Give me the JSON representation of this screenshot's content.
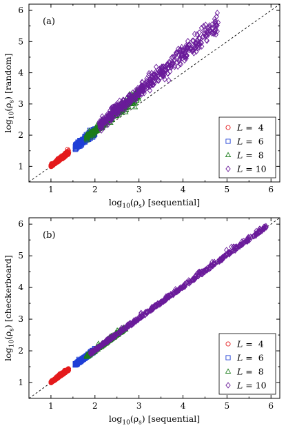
{
  "colors": {
    "L4": "#e41a1c",
    "L6": "#1f3fd6",
    "L8": "#1b7d1b",
    "L10": "#6a1b9a"
  },
  "chart_data": [
    {
      "type": "scatter",
      "panel_label": "(a)",
      "xlabel_math": "log",
      "xlabel_sub": "10",
      "xlabel_rho": "(ρ",
      "xlabel_rho_sub": "s",
      "xlabel_rest": ") [sequential]",
      "ylabel_math": "log",
      "ylabel_sub": "10",
      "ylabel_rho": "(ρ",
      "ylabel_rho_sub": "s",
      "ylabel_rest": ") [random]",
      "xlim": [
        0.5,
        6.2
      ],
      "ylim": [
        0.5,
        6.2
      ],
      "xticks": [
        "1",
        "2",
        "3",
        "4",
        "5",
        "6"
      ],
      "yticks": [
        "1",
        "2",
        "3",
        "4",
        "5",
        "6"
      ],
      "reference_line": "y = x",
      "legend_placement": "bottom-right",
      "series": [
        {
          "name": "L =  4",
          "marker": "circle",
          "color_key": "L4",
          "x_range": [
            1.0,
            1.4
          ],
          "slope": 1.08,
          "spread": 0.04
        },
        {
          "name": "L =  6",
          "marker": "square",
          "color_key": "L6",
          "x_range": [
            1.55,
            2.0
          ],
          "slope": 1.12,
          "spread": 0.06
        },
        {
          "name": "L =  8",
          "marker": "triangle",
          "color_key": "L8",
          "x_range": [
            1.8,
            3.0
          ],
          "slope": 1.16,
          "spread": 0.09
        },
        {
          "name": "L = 10",
          "marker": "diamond",
          "color_key": "L10",
          "x_range": [
            2.1,
            4.8
          ],
          "slope": 1.2,
          "spread": 0.14
        }
      ]
    },
    {
      "type": "scatter",
      "panel_label": "(b)",
      "xlabel_math": "log",
      "xlabel_sub": "10",
      "xlabel_rho": "(ρ",
      "xlabel_rho_sub": "s",
      "xlabel_rest": ") [sequential]",
      "ylabel_math": "log",
      "ylabel_sub": "10",
      "ylabel_rho": "(ρ",
      "ylabel_rho_sub": "s",
      "ylabel_rest": ") [checkerboard]",
      "xlim": [
        0.5,
        6.2
      ],
      "ylim": [
        0.5,
        6.2
      ],
      "xticks": [
        "1",
        "2",
        "3",
        "4",
        "5",
        "6"
      ],
      "yticks": [
        "1",
        "2",
        "3",
        "4",
        "5",
        "6"
      ],
      "reference_line": "y = x",
      "legend_placement": "bottom-right",
      "series": [
        {
          "name": "L =  4",
          "marker": "circle",
          "color_key": "L4",
          "x_range": [
            1.0,
            1.4
          ],
          "slope": 1.0,
          "spread": 0.025
        },
        {
          "name": "L =  6",
          "marker": "square",
          "color_key": "L6",
          "x_range": [
            1.55,
            2.0
          ],
          "slope": 1.0,
          "spread": 0.035
        },
        {
          "name": "L =  8",
          "marker": "triangle",
          "color_key": "L8",
          "x_range": [
            1.8,
            2.7
          ],
          "slope": 1.0,
          "spread": 0.045
        },
        {
          "name": "L = 10",
          "marker": "diamond",
          "color_key": "L10",
          "x_range": [
            1.9,
            5.9
          ],
          "slope": 1.0,
          "spread": 0.06
        }
      ]
    }
  ]
}
